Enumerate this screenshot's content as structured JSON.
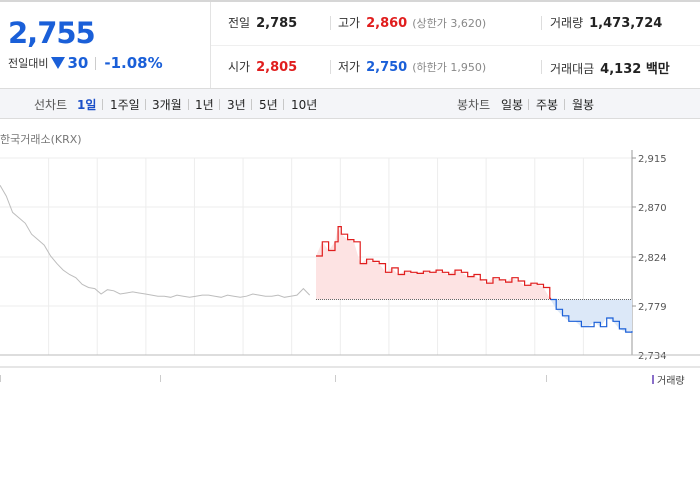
{
  "summary": {
    "price": "2,755",
    "change_label": "전일대비",
    "change_abs": "30",
    "change_pct": "-1.08%",
    "direction_icon": "down-triangle-icon"
  },
  "stats": {
    "prev_close": {
      "label": "전일",
      "value": "2,785"
    },
    "high": {
      "label": "고가",
      "value": "2,860",
      "limit": "(상한가 3,620)"
    },
    "volume": {
      "label": "거래량",
      "value": "1,473,724"
    },
    "open": {
      "label": "시가",
      "value": "2,805"
    },
    "low": {
      "label": "저가",
      "value": "2,750",
      "limit": "(하한가 1,950)"
    },
    "amount": {
      "label": "거래대금",
      "value": "4,132 백만"
    }
  },
  "toolbar": {
    "line_label": "선차트",
    "line_periods": [
      "1일",
      "1주일",
      "3개월",
      "1년",
      "3년",
      "5년",
      "10년"
    ],
    "active_period": "1일",
    "candle_label": "봉차트",
    "candle_periods": [
      "일봉",
      "주봉",
      "월봉"
    ]
  },
  "market_label": "한국거래소(KRX)",
  "volume_legend": "거래량",
  "colors": {
    "up": "#e01d1d",
    "down": "#1a5fd8",
    "up_fill": "#fde3e3",
    "down_fill": "#dce8f8",
    "history_line": "#bdbdbd",
    "volume": "#8a6fc9"
  },
  "chart_data": {
    "type": "line",
    "title": "",
    "xlabel": "",
    "ylabel": "",
    "ylim": [
      2734,
      2915
    ],
    "yticks": [
      2734,
      2779,
      2824,
      2870,
      2915
    ],
    "ytick_labels": [
      "2,734",
      "2,779",
      "2,824",
      "2,870",
      "2,915"
    ],
    "x_range": [
      0,
      100
    ],
    "intraday_start": 50,
    "prev_close_value": 2785,
    "history": [
      [
        0,
        2890
      ],
      [
        1,
        2880
      ],
      [
        2,
        2865
      ],
      [
        3,
        2860
      ],
      [
        4,
        2855
      ],
      [
        5,
        2845
      ],
      [
        6,
        2840
      ],
      [
        7,
        2835
      ],
      [
        8,
        2825
      ],
      [
        9,
        2818
      ],
      [
        10,
        2812
      ],
      [
        11,
        2808
      ],
      [
        12,
        2805
      ],
      [
        13,
        2799
      ],
      [
        14,
        2796
      ],
      [
        15,
        2795
      ],
      [
        16,
        2790
      ],
      [
        17,
        2794
      ],
      [
        18,
        2793
      ],
      [
        19,
        2790
      ],
      [
        20,
        2791
      ],
      [
        21,
        2792
      ],
      [
        22,
        2791
      ],
      [
        23,
        2790
      ],
      [
        24,
        2789
      ],
      [
        25,
        2788
      ],
      [
        26,
        2788
      ],
      [
        27,
        2787
      ],
      [
        28,
        2789
      ],
      [
        29,
        2788
      ],
      [
        30,
        2787
      ],
      [
        31,
        2788
      ],
      [
        32,
        2789
      ],
      [
        33,
        2789
      ],
      [
        34,
        2788
      ],
      [
        35,
        2787
      ],
      [
        36,
        2789
      ],
      [
        37,
        2788
      ],
      [
        38,
        2787
      ],
      [
        39,
        2788
      ],
      [
        40,
        2790
      ],
      [
        41,
        2789
      ],
      [
        42,
        2788
      ],
      [
        43,
        2788
      ],
      [
        44,
        2789
      ],
      [
        45,
        2787
      ],
      [
        46,
        2788
      ],
      [
        47,
        2789
      ],
      [
        48,
        2795
      ],
      [
        49,
        2789
      ]
    ],
    "intraday": [
      [
        50,
        2825
      ],
      [
        51,
        2838
      ],
      [
        52,
        2830
      ],
      [
        53,
        2838
      ],
      [
        53.5,
        2852
      ],
      [
        54,
        2845
      ],
      [
        55,
        2840
      ],
      [
        56,
        2838
      ],
      [
        57,
        2818
      ],
      [
        58,
        2822
      ],
      [
        59,
        2820
      ],
      [
        60,
        2818
      ],
      [
        61,
        2810
      ],
      [
        62,
        2814
      ],
      [
        63,
        2808
      ],
      [
        64,
        2811
      ],
      [
        65,
        2810
      ],
      [
        66,
        2809
      ],
      [
        67,
        2811
      ],
      [
        68,
        2810
      ],
      [
        69,
        2812
      ],
      [
        70,
        2810
      ],
      [
        71,
        2808
      ],
      [
        72,
        2812
      ],
      [
        73,
        2810
      ],
      [
        74,
        2806
      ],
      [
        75,
        2808
      ],
      [
        76,
        2803
      ],
      [
        77,
        2800
      ],
      [
        78,
        2805
      ],
      [
        79,
        2803
      ],
      [
        80,
        2801
      ],
      [
        81,
        2805
      ],
      [
        82,
        2802
      ],
      [
        83,
        2798
      ],
      [
        84,
        2800
      ],
      [
        85,
        2799
      ],
      [
        86,
        2796
      ],
      [
        87,
        2786
      ],
      [
        88,
        2776
      ],
      [
        89,
        2770
      ],
      [
        90,
        2765
      ],
      [
        91,
        2765
      ],
      [
        92,
        2760
      ],
      [
        93,
        2760
      ],
      [
        94,
        2764
      ],
      [
        95,
        2760
      ],
      [
        96,
        2768
      ],
      [
        97,
        2765
      ],
      [
        98,
        2758
      ],
      [
        99,
        2755
      ],
      [
        100,
        2756
      ]
    ]
  }
}
